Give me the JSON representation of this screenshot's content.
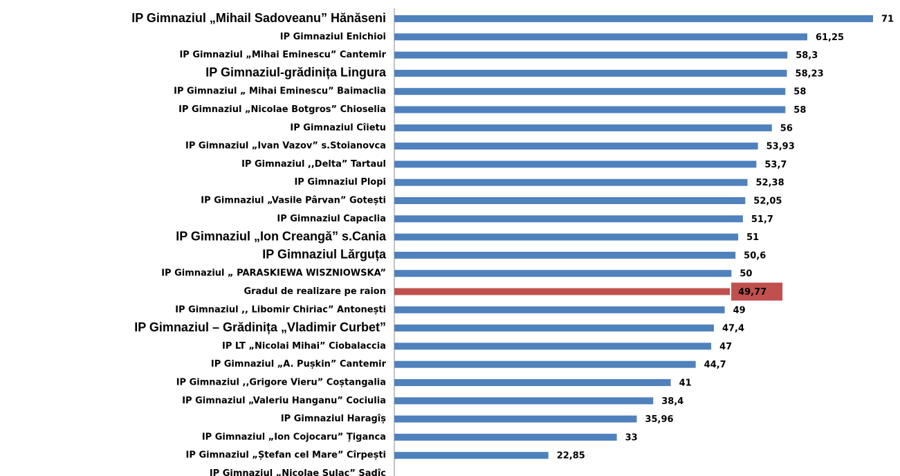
{
  "chart_data": {
    "type": "bar",
    "orientation": "horizontal",
    "categories": [
      "IP Gimnaziul „Mihail  Sadoveanu” Hănăseni",
      "IP Gimnaziul Enichioi",
      "IP Gimnaziul „Mihai Eminescu” Cantemir",
      "IP Gimnaziul-grădinița Lingura",
      "IP Gimnaziul „ Mihai Eminescu” Baimaclia",
      "IP Gimnaziul „Nicolae Botgros” Chioselia",
      "IP Gimnaziul Cîietu",
      "IP Gimnaziul „Ivan Vazov” s.Stoianovca",
      "IP Gimnaziul ,,Delta” Tartaul",
      "IP Gimnaziul Plopi",
      "IP Gimnaziul „Vasile Pârvan” Gotești",
      "IP Gimnaziul Capaclia",
      "IP Gimnaziul „Ion Creangă” s.Cania",
      "IP Gimnaziul Lărguța",
      "IP Gimnaziul „ PARASKIEWA WISZNIOWSKA”",
      "Gradul de realizare pe raion",
      "IP Gimnaziul ,, Libomir Chiriac” Antonești",
      "IP Gimnaziul – Grădinița „Vladimir  Curbet”",
      "IP LT „Nicolai Mihai” Ciobalaccia",
      "IP Gimnaziul „A. Pușkin” Cantemir",
      "IP Gimnaziul ,,Grigore Vieru” Coștangalia",
      "IP Gimnaziul „Valeriu Hanganu” Cociulia",
      "IP Gimnaziul Haragîș",
      "IP Gimnaziul „Ion Cojocaru” Țiganca",
      "IP Gimnaziul „Ștefan cel Mare” Cîrpești",
      "IP Gimnaziul „Nicolae Sulac” Sadîc"
    ],
    "values": [
      71,
      61.25,
      58.3,
      58.23,
      58,
      58,
      56,
      53.93,
      53.7,
      52.38,
      52.05,
      51.7,
      51,
      50.6,
      50,
      49.77,
      49,
      47.4,
      47,
      44.7,
      41,
      38.4,
      35.96,
      33,
      22.85,
      null
    ],
    "value_labels": [
      "71",
      "61,25",
      "58,3",
      "58,23",
      "58",
      "58",
      "56",
      "53,93",
      "53,7",
      "52,38",
      "52,05",
      "51,7",
      "51",
      "50,6",
      "50",
      "49,77",
      "49",
      "47,4",
      "47",
      "44,7",
      "41",
      "38,4",
      "35,96",
      "33",
      "22,85",
      null
    ],
    "colors": [
      "#4f81bd",
      "#4f81bd",
      "#4f81bd",
      "#4f81bd",
      "#4f81bd",
      "#4f81bd",
      "#4f81bd",
      "#4f81bd",
      "#4f81bd",
      "#4f81bd",
      "#4f81bd",
      "#4f81bd",
      "#4f81bd",
      "#4f81bd",
      "#4f81bd",
      "#c0504d",
      "#4f81bd",
      "#4f81bd",
      "#4f81bd",
      "#4f81bd",
      "#4f81bd",
      "#4f81bd",
      "#4f81bd",
      "#4f81bd",
      "#4f81bd",
      null
    ]
  }
}
